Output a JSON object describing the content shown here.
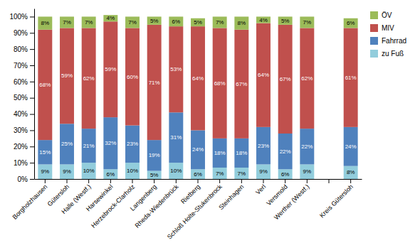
{
  "chart_data": {
    "type": "bar",
    "stacked": true,
    "categories": [
      "Borgholzhausen",
      "Gütersloh",
      "Halle (Westf.)",
      "Harsewinkel",
      "Herzebrock-Clarholz",
      "Langenberg",
      "Rheda-Wiedenbrück",
      "Rietberg",
      "Schloß Holte-Stukenbrock",
      "Steinhagen",
      "Verl",
      "Versmold",
      "Werther (Westf.)",
      null,
      "Kreis Gütersloh"
    ],
    "series": [
      {
        "name": "zu Fuß",
        "color": "#92CDDC",
        "values": [
          9,
          9,
          10,
          6,
          10,
          5,
          10,
          6,
          7,
          7,
          9,
          6,
          9,
          0,
          8
        ],
        "value_labels": [
          "9%",
          "9%",
          "10%",
          "6%",
          "10%",
          "5%",
          "10%",
          "6%",
          "7%",
          "7%",
          "9%",
          "6%",
          "9%",
          null,
          "8%"
        ]
      },
      {
        "name": "Fahrrad",
        "color": "#4F81BD",
        "values": [
          15,
          25,
          21,
          32,
          23,
          19,
          31,
          24,
          18,
          18,
          23,
          22,
          22,
          0,
          24
        ],
        "value_labels": [
          "15%",
          "25%",
          "21%",
          "32%",
          "23%",
          "19%",
          "31%",
          "24%",
          "18%",
          "18%",
          "23%",
          "22%",
          "22%",
          null,
          "24%"
        ]
      },
      {
        "name": "MIV",
        "color": "#C0504D",
        "values": [
          68,
          59,
          62,
          59,
          60,
          71,
          53,
          64,
          68,
          67,
          64,
          67,
          62,
          0,
          61
        ],
        "value_labels": [
          "68%",
          "59%",
          "62%",
          "59%",
          "60%",
          "71%",
          "53%",
          "64%",
          "68%",
          "67%",
          "64%",
          "67%",
          "62%",
          null,
          "61%"
        ]
      },
      {
        "name": "ÖV",
        "color": "#9BBB59",
        "values": [
          8,
          7,
          7,
          4,
          7,
          5,
          6,
          5,
          7,
          8,
          4,
          5,
          7,
          0,
          6
        ],
        "value_labels": [
          "8%",
          "7%",
          "7%",
          "4%",
          "7%",
          "5%",
          "6%",
          "5%",
          "7%",
          "8%",
          "4%",
          "5%",
          "7%",
          null,
          "6%"
        ]
      }
    ],
    "ylim": [
      0,
      105
    ],
    "yticks": [
      {
        "value": 0,
        "label": "0%"
      },
      {
        "value": 10,
        "label": "10%"
      },
      {
        "value": 20,
        "label": "20%"
      },
      {
        "value": 30,
        "label": "30%"
      },
      {
        "value": 40,
        "label": "40%"
      },
      {
        "value": 50,
        "label": "50%"
      },
      {
        "value": 60,
        "label": "60%"
      },
      {
        "value": 70,
        "label": "70%"
      },
      {
        "value": 80,
        "label": "80%"
      },
      {
        "value": 90,
        "label": "90%"
      },
      {
        "value": 100,
        "label": "100%"
      }
    ],
    "grid": false,
    "legend": "right",
    "data_labels": true
  }
}
